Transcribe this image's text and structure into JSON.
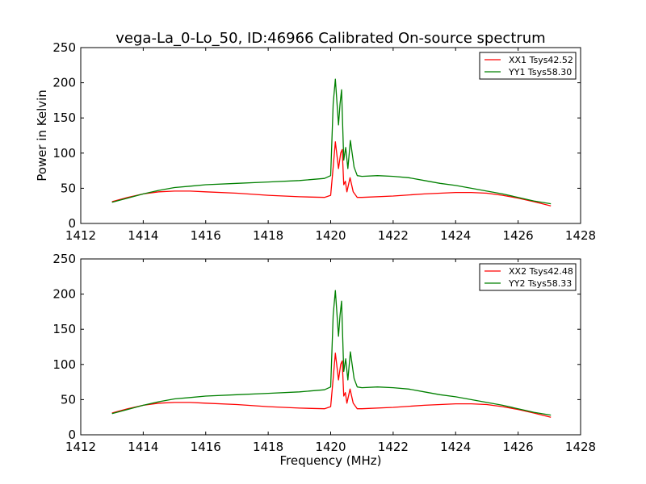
{
  "chart_data": [
    {
      "type": "line",
      "title": "vega-La_0-Lo_50, ID:46966 Calibrated On-source spectrum",
      "xlabel": "",
      "ylabel": "Power in Kelvin",
      "xlim": [
        1412,
        1428
      ],
      "ylim": [
        0,
        250
      ],
      "xticks": [
        1412,
        1414,
        1416,
        1418,
        1420,
        1422,
        1424,
        1426,
        1428
      ],
      "yticks": [
        0,
        50,
        100,
        150,
        200,
        250
      ],
      "grid": false,
      "legend_position": "top-right",
      "series": [
        {
          "name": "XX1 Tsys42.52",
          "color": "#ff0000",
          "x": [
            1413,
            1413.5,
            1414,
            1414.5,
            1415,
            1415.5,
            1416,
            1417,
            1418,
            1419,
            1419.8,
            1420.0,
            1420.08,
            1420.15,
            1420.25,
            1420.32,
            1420.37,
            1420.42,
            1420.47,
            1420.52,
            1420.62,
            1420.72,
            1420.85,
            1421,
            1422,
            1423,
            1424,
            1424.5,
            1425,
            1425.5,
            1426,
            1426.5,
            1427.05
          ],
          "y": [
            31,
            37,
            42,
            45,
            46,
            46,
            45,
            43,
            40,
            38,
            37,
            40,
            80,
            116,
            78,
            100,
            105,
            55,
            60,
            45,
            65,
            45,
            37,
            37,
            39,
            42,
            44,
            44,
            43,
            40,
            36,
            31,
            25
          ]
        },
        {
          "name": "YY1 Tsys58.30",
          "color": "#008000",
          "x": [
            1413,
            1413.5,
            1414,
            1414.5,
            1415,
            1415.5,
            1416,
            1417,
            1418,
            1419,
            1419.8,
            1420.0,
            1420.08,
            1420.15,
            1420.25,
            1420.3,
            1420.35,
            1420.42,
            1420.48,
            1420.55,
            1420.63,
            1420.75,
            1420.85,
            1421,
            1421.5,
            1422,
            1422.5,
            1423,
            1423.5,
            1424,
            1424.5,
            1425,
            1425.5,
            1426,
            1426.5,
            1427.05
          ],
          "y": [
            30,
            36,
            42,
            47,
            51,
            53,
            55,
            57,
            59,
            61,
            64,
            68,
            170,
            205,
            140,
            170,
            190,
            90,
            108,
            78,
            118,
            80,
            68,
            67,
            68,
            67,
            65,
            61,
            57,
            54,
            50,
            46,
            42,
            37,
            32,
            28
          ]
        }
      ]
    },
    {
      "type": "line",
      "title": "",
      "xlabel": "Frequency (MHz)",
      "ylabel": "",
      "xlim": [
        1412,
        1428
      ],
      "ylim": [
        0,
        250
      ],
      "xticks": [
        1412,
        1414,
        1416,
        1418,
        1420,
        1422,
        1424,
        1426,
        1428
      ],
      "yticks": [
        0,
        50,
        100,
        150,
        200,
        250
      ],
      "grid": false,
      "legend_position": "top-right",
      "series": [
        {
          "name": "XX2 Tsys42.48",
          "color": "#ff0000",
          "x": [
            1413,
            1413.5,
            1414,
            1414.5,
            1415,
            1415.5,
            1416,
            1417,
            1418,
            1419,
            1419.8,
            1420.0,
            1420.08,
            1420.15,
            1420.25,
            1420.32,
            1420.37,
            1420.42,
            1420.47,
            1420.52,
            1420.62,
            1420.72,
            1420.85,
            1421,
            1422,
            1423,
            1424,
            1424.5,
            1425,
            1425.5,
            1426,
            1426.5,
            1427.05
          ],
          "y": [
            31,
            37,
            42,
            45,
            46,
            46,
            45,
            43,
            40,
            38,
            37,
            40,
            80,
            116,
            78,
            100,
            105,
            55,
            60,
            45,
            65,
            45,
            37,
            37,
            39,
            42,
            44,
            44,
            43,
            40,
            36,
            31,
            25
          ]
        },
        {
          "name": "YY2 Tsys58.33",
          "color": "#008000",
          "x": [
            1413,
            1413.5,
            1414,
            1414.5,
            1415,
            1415.5,
            1416,
            1417,
            1418,
            1419,
            1419.8,
            1420.0,
            1420.08,
            1420.15,
            1420.25,
            1420.3,
            1420.35,
            1420.42,
            1420.48,
            1420.55,
            1420.63,
            1420.75,
            1420.85,
            1421,
            1421.5,
            1422,
            1422.5,
            1423,
            1423.5,
            1424,
            1424.5,
            1425,
            1425.5,
            1426,
            1426.5,
            1427.05
          ],
          "y": [
            30,
            36,
            42,
            47,
            51,
            53,
            55,
            57,
            59,
            61,
            64,
            68,
            170,
            205,
            140,
            170,
            190,
            90,
            108,
            78,
            118,
            80,
            68,
            67,
            68,
            67,
            65,
            61,
            57,
            54,
            50,
            46,
            42,
            37,
            32,
            28
          ]
        }
      ]
    }
  ]
}
